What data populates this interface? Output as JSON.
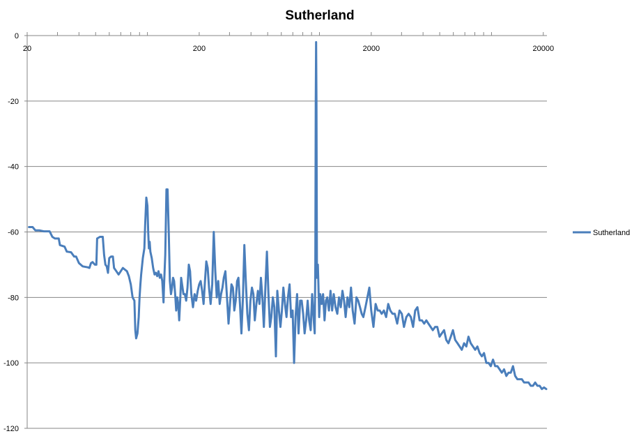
{
  "chart_data": {
    "type": "line",
    "title": "Sutherland",
    "xlabel": "",
    "ylabel": "",
    "x_scale": "log",
    "xlim": [
      20,
      21000
    ],
    "ylim": [
      -120,
      0
    ],
    "x_ticks": [
      20,
      200,
      2000,
      20000
    ],
    "x_tick_labels": [
      "20",
      "200",
      "2000",
      "20000"
    ],
    "y_ticks": [
      0,
      -20,
      -40,
      -60,
      -80,
      -100,
      -120
    ],
    "y_tick_labels": [
      "0",
      "-20",
      "-40",
      "-60",
      "-80",
      "-100",
      "-120"
    ],
    "grid": "horizontal",
    "legend": {
      "position": "right",
      "entries": [
        "Sutherland"
      ]
    },
    "series": [
      {
        "name": "Sutherland",
        "color": "#4a7ebb",
        "points": [
          [
            20.5,
            -58.5
          ],
          [
            21.5,
            -58.5
          ],
          [
            22.3,
            -59.5
          ],
          [
            23.5,
            -59.5
          ],
          [
            25,
            -59.8
          ],
          [
            27,
            -59.8
          ],
          [
            28,
            -61.5
          ],
          [
            29,
            -62
          ],
          [
            30.5,
            -62
          ],
          [
            31,
            -64
          ],
          [
            33,
            -64.5
          ],
          [
            34,
            -66
          ],
          [
            36,
            -66.2
          ],
          [
            37.5,
            -67.5
          ],
          [
            38.5,
            -67.5
          ],
          [
            40,
            -69.5
          ],
          [
            42,
            -70.5
          ],
          [
            45,
            -70.8
          ],
          [
            46,
            -71
          ],
          [
            47,
            -69.5
          ],
          [
            48,
            -69.2
          ],
          [
            49.5,
            -70
          ],
          [
            50.5,
            -70
          ],
          [
            51,
            -62
          ],
          [
            53,
            -61.5
          ],
          [
            55,
            -61.5
          ],
          [
            56,
            -67
          ],
          [
            57,
            -70
          ],
          [
            58,
            -70.5
          ],
          [
            59,
            -72.5
          ],
          [
            60,
            -68
          ],
          [
            61.5,
            -67.5
          ],
          [
            63,
            -67.5
          ],
          [
            64,
            -71
          ],
          [
            66,
            -72
          ],
          [
            68,
            -73
          ],
          [
            70,
            -72
          ],
          [
            72,
            -71
          ],
          [
            74,
            -71.5
          ],
          [
            76,
            -72
          ],
          [
            78,
            -73.5
          ],
          [
            80,
            -76
          ],
          [
            82,
            -80
          ],
          [
            84,
            -81
          ],
          [
            85,
            -90
          ],
          [
            86,
            -92.5
          ],
          [
            87.5,
            -91
          ],
          [
            89,
            -86
          ],
          [
            90,
            -80
          ],
          [
            91,
            -76
          ],
          [
            92,
            -73
          ],
          [
            94,
            -68
          ],
          [
            96,
            -65
          ],
          [
            97,
            -58
          ],
          [
            98.5,
            -49.5
          ],
          [
            100,
            -52
          ],
          [
            101,
            -60
          ],
          [
            102,
            -65
          ],
          [
            103,
            -63
          ],
          [
            104,
            -66
          ],
          [
            106,
            -68
          ],
          [
            108,
            -71
          ],
          [
            110,
            -73
          ],
          [
            112,
            -72.5
          ],
          [
            114,
            -73.5
          ],
          [
            116,
            -72
          ],
          [
            118,
            -74
          ],
          [
            120,
            -73
          ],
          [
            122,
            -75
          ],
          [
            124,
            -81.5
          ],
          [
            125,
            -76
          ],
          [
            127,
            -67
          ],
          [
            129,
            -47
          ],
          [
            131,
            -47
          ],
          [
            133,
            -60
          ],
          [
            135,
            -75
          ],
          [
            137,
            -79
          ],
          [
            139,
            -77
          ],
          [
            141,
            -74
          ],
          [
            143,
            -75
          ],
          [
            145,
            -79
          ],
          [
            147,
            -84
          ],
          [
            149,
            -80
          ],
          [
            151,
            -82
          ],
          [
            153,
            -87
          ],
          [
            155,
            -81
          ],
          [
            157,
            -74
          ],
          [
            159,
            -76
          ],
          [
            162,
            -79
          ],
          [
            165,
            -79
          ],
          [
            168,
            -81
          ],
          [
            171,
            -77
          ],
          [
            174,
            -70
          ],
          [
            177,
            -72
          ],
          [
            180,
            -79
          ],
          [
            184,
            -83
          ],
          [
            188,
            -79
          ],
          [
            192,
            -81
          ],
          [
            196,
            -78
          ],
          [
            200,
            -76
          ],
          [
            204,
            -75
          ],
          [
            208,
            -78
          ],
          [
            212,
            -82
          ],
          [
            216,
            -75
          ],
          [
            220,
            -69
          ],
          [
            224,
            -71
          ],
          [
            228,
            -77
          ],
          [
            233,
            -82
          ],
          [
            238,
            -76
          ],
          [
            243,
            -60
          ],
          [
            248,
            -72
          ],
          [
            253,
            -80
          ],
          [
            258,
            -75
          ],
          [
            263,
            -82
          ],
          [
            268,
            -79
          ],
          [
            273,
            -77
          ],
          [
            278,
            -74
          ],
          [
            284,
            -72
          ],
          [
            290,
            -80
          ],
          [
            296,
            -88
          ],
          [
            302,
            -82
          ],
          [
            308,
            -76
          ],
          [
            314,
            -77
          ],
          [
            320,
            -84
          ],
          [
            326,
            -81
          ],
          [
            332,
            -75
          ],
          [
            338,
            -74
          ],
          [
            345,
            -82
          ],
          [
            352,
            -91
          ],
          [
            359,
            -80
          ],
          [
            366,
            -64
          ],
          [
            373,
            -75
          ],
          [
            381,
            -85
          ],
          [
            389,
            -90
          ],
          [
            397,
            -81
          ],
          [
            405,
            -77
          ],
          [
            413,
            -79
          ],
          [
            421,
            -87
          ],
          [
            430,
            -82
          ],
          [
            439,
            -78
          ],
          [
            448,
            -82
          ],
          [
            457,
            -74
          ],
          [
            466,
            -80
          ],
          [
            475,
            -89
          ],
          [
            485,
            -77
          ],
          [
            495,
            -66
          ],
          [
            505,
            -79
          ],
          [
            515,
            -89
          ],
          [
            525,
            -86
          ],
          [
            536,
            -80
          ],
          [
            547,
            -83
          ],
          [
            558,
            -98
          ],
          [
            569,
            -78
          ],
          [
            581,
            -84
          ],
          [
            593,
            -89
          ],
          [
            605,
            -84
          ],
          [
            617,
            -77
          ],
          [
            630,
            -82
          ],
          [
            643,
            -86
          ],
          [
            656,
            -80
          ],
          [
            670,
            -76
          ],
          [
            684,
            -86
          ],
          [
            698,
            -84
          ],
          [
            712,
            -100
          ],
          [
            726,
            -86
          ],
          [
            741,
            -79
          ],
          [
            756,
            -91
          ],
          [
            772,
            -81
          ],
          [
            788,
            -81
          ],
          [
            804,
            -85
          ],
          [
            820,
            -91
          ],
          [
            837,
            -87
          ],
          [
            854,
            -81
          ],
          [
            871,
            -87
          ],
          [
            889,
            -90
          ],
          [
            907,
            -79
          ],
          [
            926,
            -87
          ],
          [
            938,
            -91
          ],
          [
            946,
            -69
          ],
          [
            952,
            -20
          ],
          [
            956,
            -2
          ],
          [
            961,
            -20
          ],
          [
            967,
            -74
          ],
          [
            973,
            -73
          ],
          [
            979,
            -70
          ],
          [
            986,
            -76
          ],
          [
            996,
            -86
          ],
          [
            1010,
            -79
          ],
          [
            1030,
            -82
          ],
          [
            1050,
            -79
          ],
          [
            1070,
            -87
          ],
          [
            1090,
            -81
          ],
          [
            1110,
            -80
          ],
          [
            1135,
            -84
          ],
          [
            1160,
            -78
          ],
          [
            1185,
            -84
          ],
          [
            1210,
            -79
          ],
          [
            1240,
            -83
          ],
          [
            1270,
            -85
          ],
          [
            1300,
            -80
          ],
          [
            1330,
            -83
          ],
          [
            1360,
            -78
          ],
          [
            1390,
            -81
          ],
          [
            1420,
            -86
          ],
          [
            1455,
            -80
          ],
          [
            1490,
            -83
          ],
          [
            1525,
            -77
          ],
          [
            1560,
            -84
          ],
          [
            1600,
            -88
          ],
          [
            1640,
            -80
          ],
          [
            1680,
            -81
          ],
          [
            1720,
            -83
          ],
          [
            1760,
            -85
          ],
          [
            1800,
            -86
          ],
          [
            1850,
            -83
          ],
          [
            1900,
            -80
          ],
          [
            1950,
            -77
          ],
          [
            2000,
            -84
          ],
          [
            2060,
            -89
          ],
          [
            2120,
            -82
          ],
          [
            2180,
            -84
          ],
          [
            2240,
            -84
          ],
          [
            2300,
            -85
          ],
          [
            2370,
            -84
          ],
          [
            2440,
            -86
          ],
          [
            2510,
            -82
          ],
          [
            2580,
            -84
          ],
          [
            2660,
            -85
          ],
          [
            2740,
            -85
          ],
          [
            2830,
            -88
          ],
          [
            2920,
            -84
          ],
          [
            3010,
            -85
          ],
          [
            3100,
            -89
          ],
          [
            3200,
            -86
          ],
          [
            3300,
            -85
          ],
          [
            3400,
            -86
          ],
          [
            3500,
            -89
          ],
          [
            3600,
            -84
          ],
          [
            3710,
            -83
          ],
          [
            3820,
            -87
          ],
          [
            3940,
            -87
          ],
          [
            4060,
            -88
          ],
          [
            4180,
            -87
          ],
          [
            4300,
            -88
          ],
          [
            4430,
            -89
          ],
          [
            4560,
            -90
          ],
          [
            4700,
            -89
          ],
          [
            4840,
            -89
          ],
          [
            4990,
            -92
          ],
          [
            5140,
            -91
          ],
          [
            5300,
            -90
          ],
          [
            5460,
            -93
          ],
          [
            5620,
            -94
          ],
          [
            5800,
            -92
          ],
          [
            5970,
            -90
          ],
          [
            6150,
            -93
          ],
          [
            6340,
            -94
          ],
          [
            6530,
            -95
          ],
          [
            6720,
            -96
          ],
          [
            6930,
            -94
          ],
          [
            7140,
            -95
          ],
          [
            7350,
            -92
          ],
          [
            7570,
            -94
          ],
          [
            7800,
            -95
          ],
          [
            8040,
            -96
          ],
          [
            8280,
            -95
          ],
          [
            8530,
            -97
          ],
          [
            8790,
            -98
          ],
          [
            9050,
            -97
          ],
          [
            9330,
            -100
          ],
          [
            9610,
            -100
          ],
          [
            9900,
            -101
          ],
          [
            10200,
            -99
          ],
          [
            10500,
            -101
          ],
          [
            10820,
            -101
          ],
          [
            11150,
            -102
          ],
          [
            11480,
            -103
          ],
          [
            11830,
            -102
          ],
          [
            12190,
            -104
          ],
          [
            12560,
            -103
          ],
          [
            12940,
            -103
          ],
          [
            13330,
            -101
          ],
          [
            13730,
            -104
          ],
          [
            14140,
            -105
          ],
          [
            14570,
            -105
          ],
          [
            15010,
            -105
          ],
          [
            15460,
            -106
          ],
          [
            15930,
            -106
          ],
          [
            16410,
            -106
          ],
          [
            16910,
            -107
          ],
          [
            17420,
            -107
          ],
          [
            17940,
            -106
          ],
          [
            18480,
            -107
          ],
          [
            19040,
            -107
          ],
          [
            19620,
            -108
          ],
          [
            20210,
            -107.5
          ],
          [
            20800,
            -108
          ]
        ]
      }
    ]
  }
}
